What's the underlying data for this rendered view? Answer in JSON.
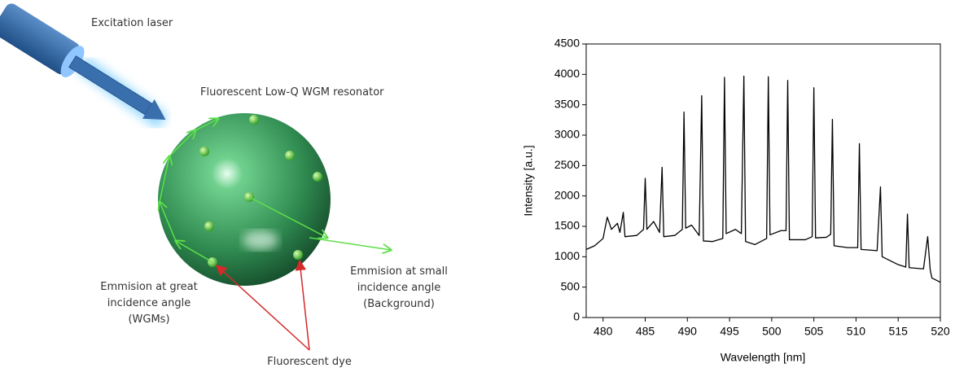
{
  "diagram": {
    "labels": {
      "laser": "Excitation laser",
      "resonator": "Fluorescent Low-Q WGM resonator",
      "great_angle": [
        "Emmision at great",
        "incidence angle",
        "(WGMs)"
      ],
      "small_angle": [
        "Emmision at small",
        "incidence angle",
        "(Background)"
      ],
      "dye": "Fluorescent dye"
    }
  },
  "chart_data": {
    "type": "line",
    "xlabel": "Wavelength [nm]",
    "ylabel": "Intensity [a.u.]",
    "color": "#000000",
    "xlim": [
      478,
      520
    ],
    "ylim": [
      0,
      4500
    ],
    "xticks": [
      480,
      485,
      490,
      495,
      500,
      505,
      510,
      515,
      520
    ],
    "yticks": [
      0,
      500,
      1000,
      1500,
      2000,
      2500,
      3000,
      3500,
      4000,
      4500
    ],
    "x": [
      478,
      479,
      480,
      480.5,
      481,
      481.7,
      482,
      482.4,
      482.6,
      484,
      484.8,
      485,
      485.2,
      486,
      486.7,
      487,
      487.2,
      488.5,
      489.4,
      489.6,
      489.8,
      490.5,
      491.4,
      491.7,
      491.9,
      493,
      494.2,
      494.4,
      494.6,
      495.7,
      496.4,
      496.7,
      496.9,
      498,
      499.4,
      499.6,
      499.8,
      501.1,
      501.7,
      501.9,
      502.1,
      504,
      504.8,
      505,
      505.2,
      506.5,
      507,
      507.2,
      507.4,
      509,
      510.2,
      510.4,
      510.6,
      512.5,
      512.9,
      513.1,
      515,
      515.9,
      516.1,
      516.3,
      518,
      518.5,
      518.8,
      519,
      520
    ],
    "values": [
      1120,
      1180,
      1300,
      1650,
      1450,
      1550,
      1400,
      1730,
      1330,
      1350,
      1450,
      2290,
      1450,
      1580,
      1400,
      2470,
      1330,
      1350,
      1450,
      3380,
      1470,
      1520,
      1350,
      3650,
      1260,
      1250,
      1300,
      3950,
      1380,
      1450,
      1380,
      3970,
      1250,
      1200,
      1300,
      3960,
      1360,
      1430,
      1430,
      3900,
      1280,
      1280,
      1330,
      3780,
      1310,
      1320,
      1370,
      3260,
      1180,
      1150,
      1150,
      2860,
      1120,
      1100,
      2150,
      1000,
      870,
      830,
      1700,
      820,
      800,
      1330,
      780,
      650,
      580
    ]
  }
}
